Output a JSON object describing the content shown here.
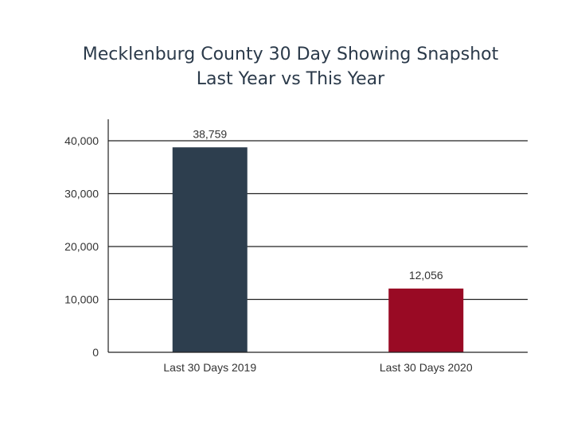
{
  "chart_data": {
    "type": "bar",
    "title": "Mecklenburg County 30 Day Showing Snapshot",
    "subtitle": "Last Year vs This Year",
    "categories": [
      "Last 30 Days 2019",
      "Last 30 Days 2020"
    ],
    "values": [
      38759,
      12056
    ],
    "data_labels": [
      "38,759",
      "12,056"
    ],
    "bar_colors": [
      "#2d3e4e",
      "#990a24"
    ],
    "ylim": [
      0,
      40000
    ],
    "yticks": [
      0,
      10000,
      20000,
      30000,
      40000
    ],
    "ytick_labels": [
      "0",
      "10,000",
      "20,000",
      "30,000",
      "40,000"
    ],
    "grid": true,
    "legend": "none"
  }
}
